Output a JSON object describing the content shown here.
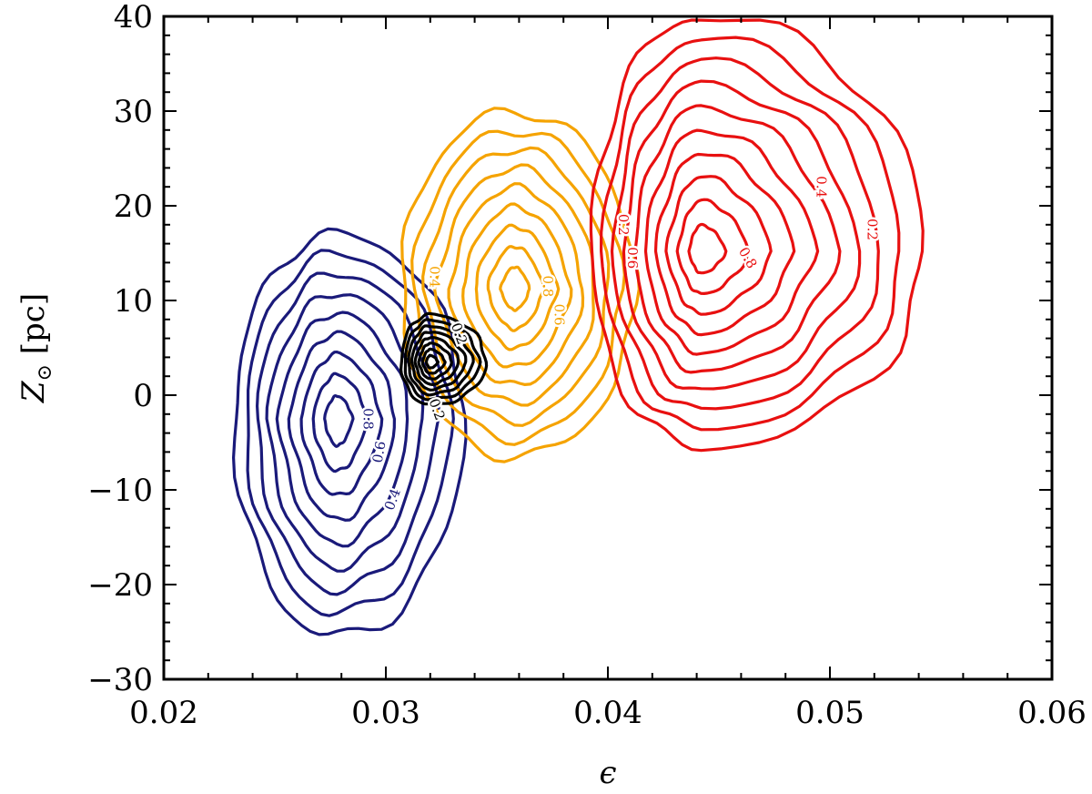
{
  "chart_data": {
    "type": "contour",
    "title": "",
    "xlabel": "ϵ",
    "ylabel_main": "Z",
    "ylabel_sub": "⊙",
    "ylabel_unit": " [pc]",
    "xlim": [
      0.02,
      0.06
    ],
    "ylim": [
      -30,
      40
    ],
    "xticks": [
      0.02,
      0.03,
      0.04,
      0.05,
      0.06
    ],
    "xtick_labels": [
      "0.02",
      "0.03",
      "0.04",
      "0.05",
      "0.06"
    ],
    "yticks": [
      -30,
      -20,
      -10,
      0,
      10,
      20,
      30,
      40
    ],
    "ytick_labels": [
      "−30",
      "−20",
      "−10",
      "0",
      "10",
      "20",
      "30",
      "40"
    ],
    "grid": false,
    "series": [
      {
        "color": "#1a1a7a",
        "center": [
          0.0278,
          -2.5
        ],
        "extent_low": [
          0.0232,
          -25.5
        ],
        "extent_high": [
          0.0335,
          17
        ],
        "levels": 9,
        "labels": [
          {
            "text": "0.8",
            "x": 0.0292,
            "y": -2.5,
            "angle": 90
          },
          {
            "text": "0.6",
            "x": 0.0297,
            "y": -6,
            "angle": -80
          },
          {
            "text": "0.4",
            "x": 0.0303,
            "y": -11,
            "angle": -70
          }
        ]
      },
      {
        "color": "#f5a300",
        "center": [
          0.0358,
          11.2
        ],
        "extent_low": [
          0.0307,
          -6.5
        ],
        "extent_high": [
          0.0412,
          30
        ],
        "levels": 9,
        "labels": [
          {
            "text": "0.8",
            "x": 0.0373,
            "y": 11.5,
            "angle": 90
          },
          {
            "text": "0.6",
            "x": 0.0378,
            "y": 8.5,
            "angle": 90
          },
          {
            "text": "0.4",
            "x": 0.0322,
            "y": 12.5,
            "angle": 90
          }
        ]
      },
      {
        "color": "#e81010",
        "center": [
          0.0442,
          15.2
        ],
        "extent_low": [
          0.0393,
          -5.5
        ],
        "extent_high": [
          0.0542,
          40
        ],
        "levels": 10,
        "labels": [
          {
            "text": "0.2",
            "x": 0.0519,
            "y": 17.5,
            "angle": 90
          },
          {
            "text": "0.4",
            "x": 0.0496,
            "y": 22,
            "angle": 90
          },
          {
            "text": "0.6",
            "x": 0.0411,
            "y": 14.5,
            "angle": 90
          },
          {
            "text": "0.8",
            "x": 0.0463,
            "y": 14.5,
            "angle": 60
          },
          {
            "text": "0.2",
            "x": 0.0407,
            "y": 18,
            "angle": 90
          }
        ]
      },
      {
        "color": "#000000",
        "center": [
          0.032,
          3.5
        ],
        "extent_low": [
          0.0307,
          -1
        ],
        "extent_high": [
          0.0345,
          8.5
        ],
        "levels": 8,
        "labels": [
          {
            "text": "0.2",
            "x": 0.0333,
            "y": 6.5,
            "angle": 70
          },
          {
            "text": "0.2",
            "x": 0.0323,
            "y": -1.5,
            "angle": 70
          }
        ]
      }
    ]
  }
}
